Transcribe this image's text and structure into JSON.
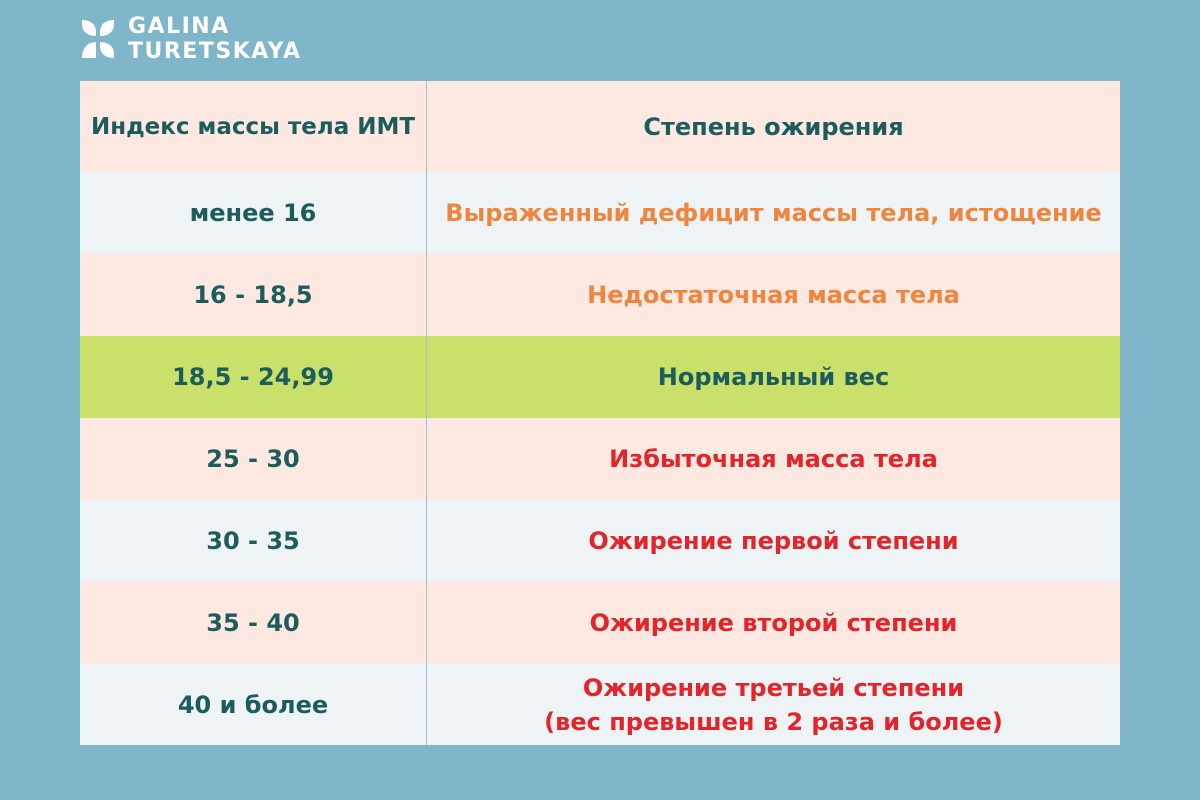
{
  "brand": {
    "line1": "GALINA",
    "line2": "TURETSKAYA",
    "icon": "leaf-logo-icon"
  },
  "table": {
    "headers": [
      "Индекс массы тела ИМТ",
      "Степень ожирения"
    ],
    "rows": [
      {
        "bmi": "менее 16",
        "degree": "Выраженный дефицит массы тела, истощение",
        "degree_line2": ""
      },
      {
        "bmi": "16 - 18,5",
        "degree": "Недостаточная масса тела",
        "degree_line2": ""
      },
      {
        "bmi": "18,5 - 24,99",
        "degree": "Нормальный вес",
        "degree_line2": ""
      },
      {
        "bmi": "25 - 30",
        "degree": "Избыточная масса тела",
        "degree_line2": ""
      },
      {
        "bmi": "30 - 35",
        "degree": "Ожирение первой степени",
        "degree_line2": ""
      },
      {
        "bmi": "35 - 40",
        "degree": "Ожирение второй степени",
        "degree_line2": ""
      },
      {
        "bmi": "40 и более",
        "degree": "Ожирение третьей степени",
        "degree_line2": "(вес превышен в 2 раза и более)"
      }
    ]
  },
  "colors": {
    "background": "#7fb6c9",
    "header_text": "#1d5c5c",
    "warning_orange": "#ef8640",
    "normal_green_bg": "#c9e06a",
    "danger_red": "#e3242b"
  }
}
